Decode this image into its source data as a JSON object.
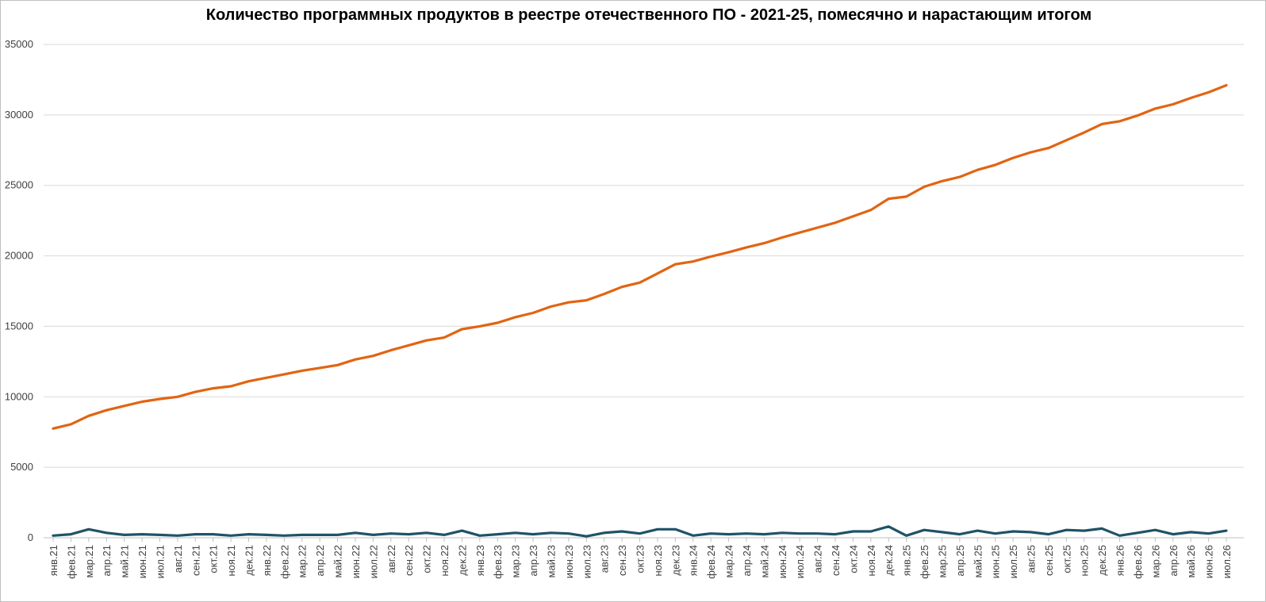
{
  "chart_data": {
    "type": "line",
    "title": "Количество программных продуктов в реестре отечественного ПО - 2021-25, помесячно и нарастающим итогом",
    "xlabel": "",
    "ylabel": "",
    "ylim": [
      0,
      35000
    ],
    "yticks": [
      "0",
      "5000",
      "10000",
      "15000",
      "20000",
      "25000",
      "30000",
      "35000"
    ],
    "grid": true,
    "legend": "none",
    "categories": [
      "янв.21",
      "фев.21",
      "мар.21",
      "апр.21",
      "май.21",
      "июн.21",
      "июл.21",
      "авг.21",
      "сен.21",
      "окт.21",
      "ноя.21",
      "дек.21",
      "янв.22",
      "фев.22",
      "мар.22",
      "апр.22",
      "май.22",
      "июн.22",
      "июл.22",
      "авг.22",
      "сен.22",
      "окт.22",
      "ноя.22",
      "дек.22",
      "янв.23",
      "фев.23",
      "мар.23",
      "апр.23",
      "май.23",
      "июн.23",
      "июл.23",
      "авг.23",
      "сен.23",
      "окт.23",
      "ноя.23",
      "дек.23",
      "янв.24",
      "фев.24",
      "мар.24",
      "апр.24",
      "май.24",
      "июн.24",
      "июл.24",
      "авг.24",
      "сен.24",
      "окт.24",
      "ноя.24",
      "дек.24",
      "янв.25",
      "фев.25",
      "мар.25",
      "апр.25",
      "май.25",
      "июн.25",
      "июл.25",
      "авг.25",
      "сен.25",
      "окт.25",
      "ноя.25",
      "дек.25",
      "янв.26",
      "фев.26",
      "мар.26",
      "апр.26",
      "май.26",
      "июн.26",
      "июл.26"
    ],
    "series": [
      {
        "color": "#e26412",
        "values": [
          7750,
          8050,
          8650,
          9050,
          9350,
          9650,
          9850,
          10000,
          10350,
          10600,
          10750,
          11100,
          11350,
          11600,
          11850,
          12050,
          12250,
          12650,
          12900,
          13300,
          13650,
          14000,
          14200,
          14800,
          15000,
          15250,
          15650,
          15950,
          16400,
          16700,
          16850,
          17300,
          17800,
          18100,
          18750,
          19400,
          19600,
          19950,
          20250,
          20600,
          20900,
          21300,
          21650,
          22000,
          22350,
          22800,
          23250,
          24050,
          24200,
          24900,
          25300,
          25600,
          26100,
          26450,
          26950,
          27350,
          27650,
          28200,
          28750,
          29350,
          29550,
          29950,
          30450,
          30750,
          31200,
          31600,
          32100
        ]
      },
      {
        "color": "#1f5367",
        "values": [
          150,
          250,
          600,
          350,
          200,
          250,
          200,
          150,
          250,
          250,
          150,
          250,
          200,
          150,
          200,
          200,
          200,
          350,
          200,
          300,
          250,
          350,
          200,
          500,
          150,
          250,
          350,
          250,
          350,
          300,
          100,
          350,
          450,
          300,
          600,
          600,
          150,
          300,
          250,
          300,
          250,
          350,
          300,
          300,
          250,
          450,
          450,
          800,
          150,
          550,
          400,
          250,
          500,
          300,
          450,
          400,
          250,
          550,
          500,
          650,
          150,
          350,
          550,
          250,
          400,
          300,
          500
        ]
      }
    ]
  }
}
